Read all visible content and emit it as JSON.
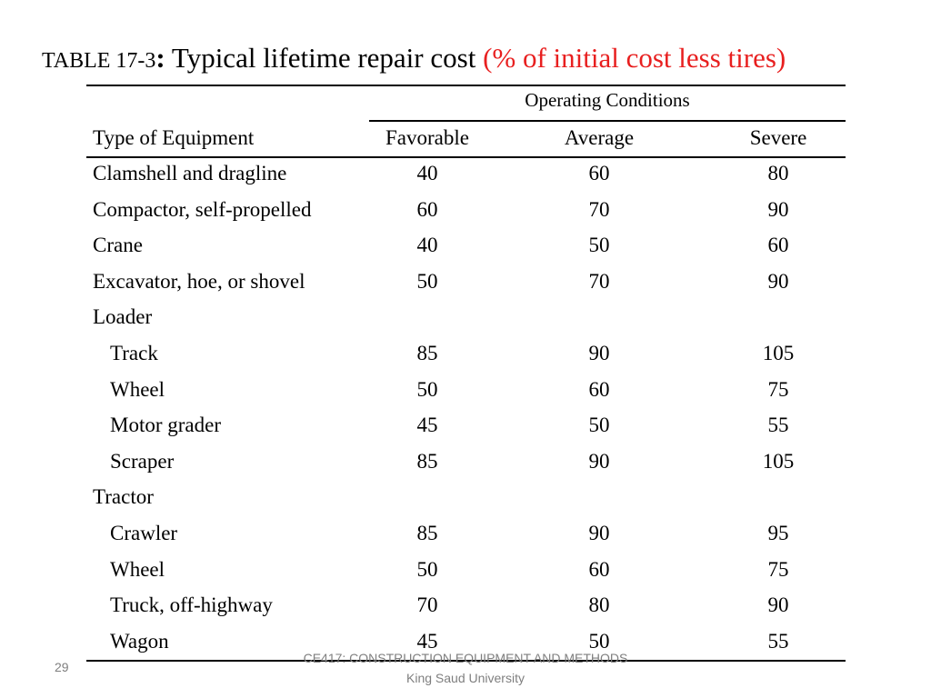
{
  "title": {
    "tag": "TABLE 17-3",
    "colon": ":",
    "main": "Typical lifetime repair cost",
    "paren": "(% of initial cost less tires)",
    "paren_color": "#e81f1f"
  },
  "table": {
    "group_header": "Operating Conditions",
    "headers": [
      "Type of Equipment",
      "Favorable",
      "Average",
      "Severe"
    ],
    "rows": [
      {
        "label": "Clamshell and dragline",
        "values": [
          "40",
          "60",
          "80"
        ]
      },
      {
        "label": "Compactor, self-propelled",
        "values": [
          "60",
          "70",
          "90"
        ]
      },
      {
        "label": "Crane",
        "values": [
          "40",
          "50",
          "60"
        ]
      },
      {
        "label": "Excavator, hoe, or shovel",
        "values": [
          "50",
          "70",
          "90"
        ]
      },
      {
        "label": "Loader",
        "values": [
          "",
          "",
          ""
        ]
      },
      {
        "label": "Track",
        "values": [
          "85",
          "90",
          "105"
        ]
      },
      {
        "label": "Wheel",
        "values": [
          "50",
          "60",
          "75"
        ]
      },
      {
        "label": "Motor grader",
        "values": [
          "45",
          "50",
          "55"
        ]
      },
      {
        "label": "Scraper",
        "values": [
          "85",
          "90",
          "105"
        ]
      },
      {
        "label": "Tractor",
        "values": [
          "",
          "",
          ""
        ]
      },
      {
        "label": "Crawler",
        "values": [
          "85",
          "90",
          "95"
        ]
      },
      {
        "label": "Wheel",
        "values": [
          "50",
          "60",
          "75"
        ]
      },
      {
        "label": "Truck, off-highway",
        "values": [
          "70",
          "80",
          "90"
        ]
      },
      {
        "label": "Wagon",
        "values": [
          "45",
          "50",
          "55"
        ]
      }
    ]
  },
  "footer": {
    "slide_number": "29",
    "course": "CE417: CONSTRUCTION EQUIPMENT AND METHODS",
    "university": "King Saud University"
  }
}
